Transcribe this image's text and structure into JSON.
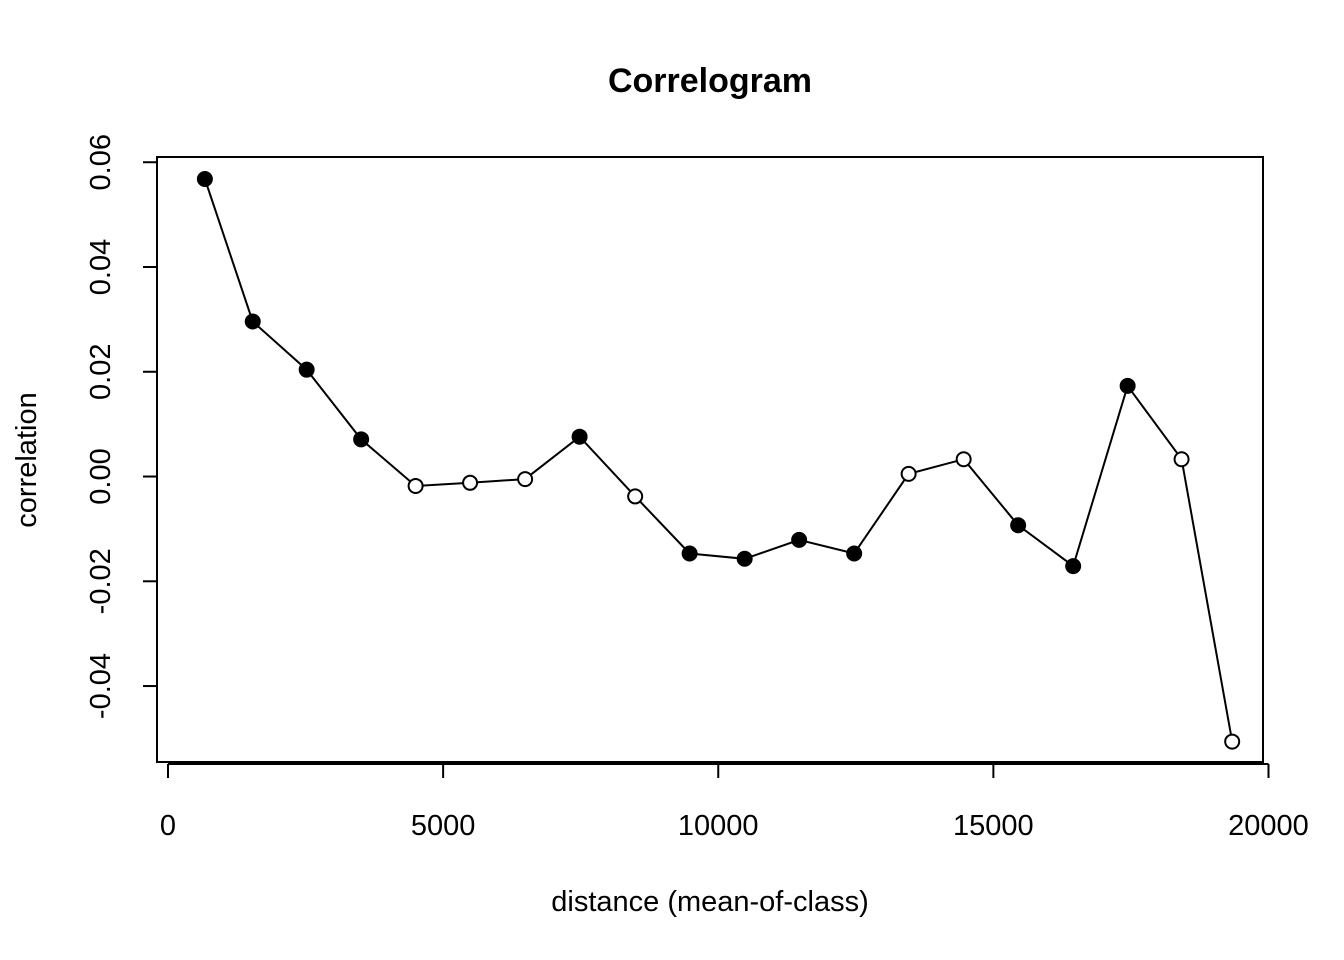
{
  "chart_data": {
    "type": "scatter",
    "title": "Correlogram",
    "xlabel": "distance (mean-of-class)",
    "ylabel": "correlation",
    "xlim": [
      -200,
      19900
    ],
    "ylim": [
      -0.0545,
      0.061
    ],
    "x_ticks": [
      0,
      5000,
      10000,
      15000,
      20000
    ],
    "y_ticks": [
      -0.04,
      -0.02,
      0.0,
      0.02,
      0.04,
      0.06
    ],
    "x_tick_labels": [
      "0",
      "5000",
      "10000",
      "15000",
      "20000"
    ],
    "y_tick_labels": [
      "-0.04",
      "-0.02",
      "0.00",
      "0.02",
      "0.04",
      "0.06"
    ],
    "grid": false,
    "series": [
      {
        "x": [
          670,
          1540,
          2520,
          3510,
          4500,
          5490,
          6490,
          7480,
          8490,
          9480,
          10480,
          11470,
          12470,
          13460,
          14460,
          15450,
          16450,
          17440,
          18420,
          19340
        ],
        "y": [
          0.0568,
          0.0296,
          0.0204,
          0.0071,
          -0.0018,
          -0.0012,
          -0.0005,
          0.0076,
          -0.0038,
          -0.0147,
          -0.0157,
          -0.0121,
          -0.0147,
          0.0005,
          0.0033,
          -0.0093,
          -0.0171,
          0.0173,
          0.0033,
          -0.0506
        ],
        "significant": [
          true,
          true,
          true,
          true,
          false,
          false,
          false,
          true,
          false,
          true,
          true,
          true,
          true,
          false,
          false,
          true,
          true,
          true,
          false,
          false
        ]
      }
    ]
  }
}
